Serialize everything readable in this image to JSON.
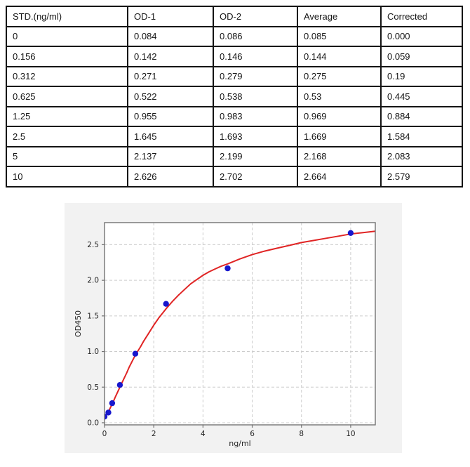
{
  "table": {
    "headers": [
      "STD.(ng/ml)",
      "OD-1",
      "OD-2",
      "Average",
      "Corrected"
    ],
    "rows": [
      [
        "0",
        "0.084",
        "0.086",
        "0.085",
        "0.000"
      ],
      [
        "0.156",
        "0.142",
        "0.146",
        "0.144",
        "0.059"
      ],
      [
        "0.312",
        "0.271",
        "0.279",
        "0.275",
        "0.19"
      ],
      [
        "0.625",
        "0.522",
        "0.538",
        "0.53",
        "0.445"
      ],
      [
        "1.25",
        "0.955",
        "0.983",
        "0.969",
        "0.884"
      ],
      [
        "2.5",
        "1.645",
        "1.693",
        "1.669",
        "1.584"
      ],
      [
        "5",
        "2.137",
        "2.199",
        "2.168",
        "2.083"
      ],
      [
        "10",
        "2.626",
        "2.702",
        "2.664",
        "2.579"
      ]
    ]
  },
  "chart_data": {
    "type": "scatter",
    "title": "",
    "xlabel": "ng/ml",
    "ylabel": "OD450",
    "xlim": [
      0,
      11
    ],
    "ylim": [
      -0.03,
      2.81
    ],
    "x_ticks": [
      0,
      2,
      4,
      6,
      8,
      10
    ],
    "y_ticks": [
      0.0,
      0.5,
      1.0,
      1.5,
      2.0,
      2.5
    ],
    "grid": "dashed",
    "legend_position": "none",
    "series": [
      {
        "name": "standard-points",
        "type": "scatter",
        "color": "#1717cd",
        "x": [
          0,
          0.156,
          0.312,
          0.625,
          1.25,
          2.5,
          5,
          10
        ],
        "y": [
          0.085,
          0.144,
          0.275,
          0.53,
          0.969,
          1.669,
          2.168,
          2.664
        ]
      },
      {
        "name": "fit-curve",
        "type": "line",
        "color": "#e02424",
        "points": [
          [
            0,
            0.07
          ],
          [
            0.08,
            0.11
          ],
          [
            0.156,
            0.15
          ],
          [
            0.25,
            0.22
          ],
          [
            0.312,
            0.26
          ],
          [
            0.45,
            0.37
          ],
          [
            0.625,
            0.5
          ],
          [
            0.75,
            0.59
          ],
          [
            0.9,
            0.7
          ],
          [
            1.0,
            0.78
          ],
          [
            1.25,
            0.95
          ],
          [
            1.45,
            1.06
          ],
          [
            1.6,
            1.15
          ],
          [
            1.8,
            1.26
          ],
          [
            2.0,
            1.37
          ],
          [
            2.2,
            1.47
          ],
          [
            2.5,
            1.6
          ],
          [
            2.75,
            1.7
          ],
          [
            3.0,
            1.79
          ],
          [
            3.25,
            1.87
          ],
          [
            3.5,
            1.95
          ],
          [
            3.75,
            2.01
          ],
          [
            4.0,
            2.07
          ],
          [
            4.25,
            2.12
          ],
          [
            4.5,
            2.16
          ],
          [
            4.75,
            2.2
          ],
          [
            5.0,
            2.23
          ],
          [
            5.5,
            2.3
          ],
          [
            6.0,
            2.36
          ],
          [
            6.5,
            2.41
          ],
          [
            7.0,
            2.45
          ],
          [
            7.5,
            2.49
          ],
          [
            8.0,
            2.53
          ],
          [
            8.5,
            2.56
          ],
          [
            9.0,
            2.59
          ],
          [
            9.5,
            2.62
          ],
          [
            10.0,
            2.65
          ],
          [
            10.5,
            2.67
          ],
          [
            11.0,
            2.69
          ]
        ]
      }
    ],
    "colors": {
      "figure_bg": "#f2f2f2",
      "plot_bg": "#ffffff",
      "grid": "#cccccc",
      "spine": "#737373",
      "tick_label": "#262626"
    }
  }
}
